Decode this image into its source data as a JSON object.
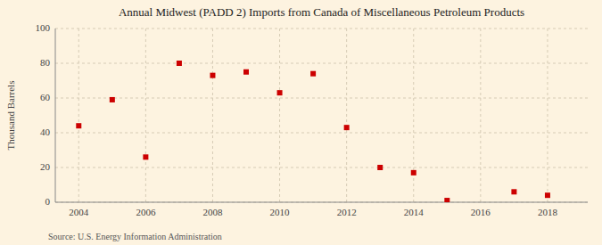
{
  "chart_data": {
    "type": "scatter",
    "title": "Annual Midwest (PADD 2) Imports from Canada of Miscellaneous Petroleum Products",
    "ylabel": "Thousand Barrels",
    "source": "Source: U.S. Energy Information Administration",
    "x": [
      2004,
      2005,
      2006,
      2007,
      2008,
      2009,
      2010,
      2011,
      2012,
      2013,
      2014,
      2015,
      2017,
      2018
    ],
    "values": [
      44,
      59,
      26,
      80,
      73,
      75,
      63,
      74,
      43,
      20,
      17,
      1,
      6,
      4
    ],
    "color": "#cc0000",
    "marker": "square",
    "xlim": [
      2003.3,
      2019.2
    ],
    "ylim": [
      0,
      100
    ],
    "xticks": [
      2004,
      2006,
      2008,
      2010,
      2012,
      2014,
      2016,
      2018
    ],
    "yticks": [
      0,
      20,
      40,
      60,
      80,
      100
    ],
    "grid": true
  }
}
